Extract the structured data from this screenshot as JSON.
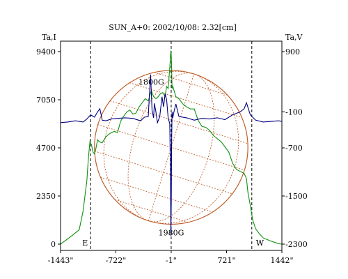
{
  "chart_data": {
    "type": "line",
    "title": "SUN_A+0: 2002/10/08: 2.32[cm]",
    "ylabel_left": "Ta,I",
    "ylabel_right": "Ta,V",
    "xlim": [
      -1443,
      1442
    ],
    "ylim_left": [
      0,
      9400
    ],
    "ylim_right": [
      -2300,
      900
    ],
    "x_ticks": [
      {
        "value": -1443,
        "label": "-1443\""
      },
      {
        "value": -722,
        "label": "-722\""
      },
      {
        "value": -1,
        "label": "-1\""
      },
      {
        "value": 721,
        "label": "721\""
      },
      {
        "value": 1442,
        "label": "1442\""
      }
    ],
    "y_ticks_left": [
      {
        "value": 0,
        "label": "0"
      },
      {
        "value": 2350,
        "label": "2350"
      },
      {
        "value": 4700,
        "label": "4700"
      },
      {
        "value": 7050,
        "label": "7050"
      },
      {
        "value": 9400,
        "label": "9400"
      }
    ],
    "y_ticks_right": [
      {
        "value": -2300,
        "label": "-2300"
      },
      {
        "value": -1500,
        "label": "-1500"
      },
      {
        "value": -700,
        "label": "-700"
      },
      {
        "value": -100,
        "label": "-100"
      },
      {
        "value": 900,
        "label": "900"
      }
    ],
    "vertical_markers": [
      {
        "x": -1050,
        "label": "E"
      },
      {
        "x": -1,
        "label": ""
      },
      {
        "x": 1050,
        "label": "W"
      }
    ],
    "annotations": [
      {
        "text": "1800G",
        "x": -260,
        "y": 7920
      },
      {
        "text": "1980G",
        "x": 0,
        "y": 560
      }
    ],
    "disk": {
      "center_x": -1,
      "radius": 1000,
      "center_y": 4725,
      "color": "#c0602c"
    },
    "series": [
      {
        "axis": "left",
        "color": "#109010",
        "x": [
          -1443,
          -1300,
          -1200,
          -1150,
          -1100,
          -1080,
          -1060,
          -1040,
          -1020,
          -1000,
          -980,
          -960,
          -940,
          -900,
          -860,
          -820,
          -780,
          -740,
          -700,
          -660,
          -620,
          -580,
          -540,
          -500,
          -460,
          -420,
          -380,
          -340,
          -300,
          -260,
          -230,
          -200,
          -170,
          -140,
          -110,
          -80,
          -60,
          -40,
          -20,
          -10,
          -5,
          0,
          5,
          10,
          20,
          40,
          60,
          100,
          150,
          200,
          250,
          300,
          350,
          400,
          450,
          500,
          550,
          600,
          650,
          700,
          750,
          800,
          850,
          900,
          950,
          980,
          1000,
          1030,
          1060,
          1100,
          1150,
          1200,
          1300,
          1400,
          1442
        ],
        "values": [
          0,
          400,
          700,
          1600,
          3100,
          4200,
          5000,
          4850,
          4500,
          4400,
          4700,
          5100,
          5000,
          4950,
          5200,
          5350,
          5450,
          5500,
          5450,
          6000,
          6250,
          6450,
          6550,
          6350,
          6400,
          6700,
          6900,
          7100,
          7000,
          7500,
          7200,
          7100,
          7200,
          7350,
          7400,
          7200,
          7700,
          7600,
          8600,
          9200,
          9450,
          9200,
          8600,
          7600,
          7700,
          7450,
          7200,
          7100,
          6850,
          6700,
          6600,
          6600,
          6050,
          5750,
          5700,
          5550,
          5300,
          5150,
          5000,
          4750,
          4500,
          3950,
          3650,
          3550,
          3450,
          3200,
          2500,
          1900,
          1200,
          750,
          500,
          300,
          150,
          20,
          0
        ]
      },
      {
        "axis": "right",
        "color": "#000080",
        "x": [
          -1443,
          -1350,
          -1250,
          -1150,
          -1100,
          -1050,
          -1000,
          -960,
          -930,
          -900,
          -850,
          -780,
          -700,
          -600,
          -500,
          -400,
          -350,
          -300,
          -270,
          -250,
          -230,
          -220,
          -200,
          -180,
          -150,
          -120,
          -100,
          -80,
          -60,
          -40,
          -20,
          -10,
          -5,
          0,
          5,
          10,
          20,
          30,
          60,
          100,
          200,
          300,
          400,
          500,
          600,
          700,
          800,
          900,
          950,
          980,
          1000,
          1030,
          1100,
          1200,
          1300,
          1400,
          1442
        ],
        "values": [
          -280,
          -270,
          -250,
          -270,
          -220,
          -150,
          -190,
          -100,
          -50,
          -240,
          -250,
          -220,
          -210,
          -200,
          -210,
          -250,
          -190,
          -180,
          520,
          -80,
          -200,
          40,
          -100,
          -280,
          -180,
          150,
          -20,
          200,
          100,
          -200,
          -300,
          -1200,
          -2150,
          -1600,
          -600,
          -100,
          -200,
          -130,
          30,
          -180,
          -200,
          -240,
          -210,
          -220,
          -200,
          -230,
          -150,
          -100,
          -50,
          50,
          -30,
          -150,
          -240,
          -270,
          -260,
          -250,
          -260
        ]
      }
    ]
  }
}
